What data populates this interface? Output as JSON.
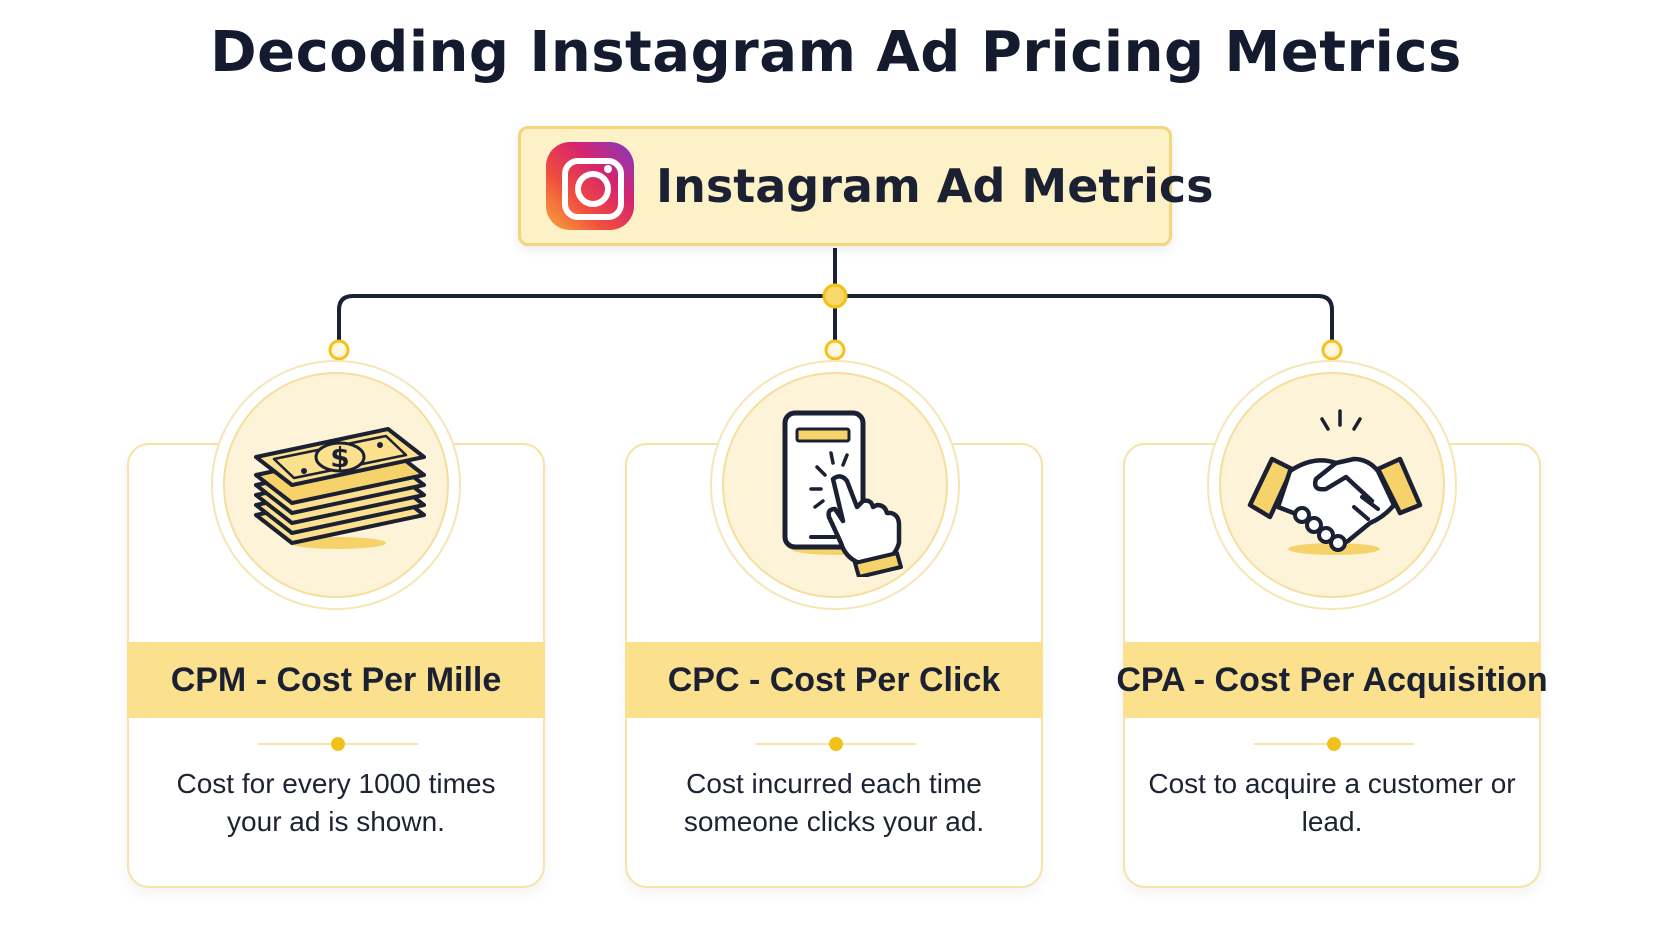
{
  "title": "Decoding Instagram Ad Pricing Metrics",
  "hub": {
    "label": "Instagram Ad Metrics",
    "icon": "instagram-logo"
  },
  "colors": {
    "accent_yellow": "#f2c21b",
    "header_fill": "#fbe08d",
    "hub_fill": "#fdf1c8",
    "connector": "#1b2133",
    "text": "#1d2333"
  },
  "metrics": [
    {
      "icon": "money-stack-icon",
      "title": "CPM - Cost Per Mille",
      "description": "Cost for every 1000 times your ad is shown."
    },
    {
      "icon": "phone-tap-icon",
      "title": "CPC - Cost Per Click",
      "description": "Cost incurred each time someone clicks your ad."
    },
    {
      "icon": "handshake-icon",
      "title": "CPA - Cost Per Acquisition",
      "description": "Cost to acquire a customer or lead."
    }
  ]
}
